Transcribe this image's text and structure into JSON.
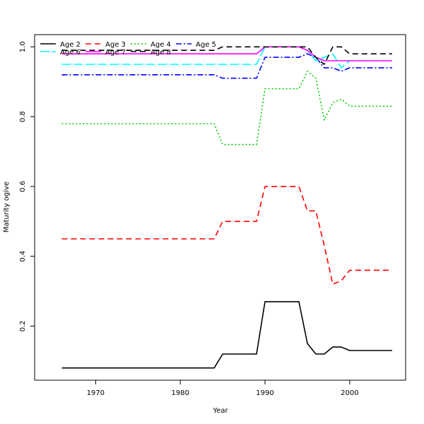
{
  "chart_data": {
    "type": "line",
    "title": "",
    "xlabel": "Year",
    "ylabel": "Maturity ogive",
    "xlim": [
      1962.8,
      2006.6
    ],
    "ylim": [
      0.045,
      1.035
    ],
    "x_ticks": [
      1970,
      1980,
      1990,
      2000
    ],
    "y_ticks": [
      0.2,
      0.4,
      0.6,
      0.8,
      1.0
    ],
    "x_tick_labels": [
      "1970",
      "1980",
      "1990",
      "2000"
    ],
    "y_tick_labels": [
      "0.2",
      "0.4",
      "0.6",
      "0.8",
      "1.0"
    ],
    "grid": false,
    "legend_position": "top-left",
    "x": [
      1966,
      1967,
      1968,
      1969,
      1970,
      1971,
      1972,
      1973,
      1974,
      1975,
      1976,
      1977,
      1978,
      1979,
      1980,
      1981,
      1982,
      1983,
      1984,
      1985,
      1986,
      1987,
      1988,
      1989,
      1990,
      1991,
      1992,
      1993,
      1994,
      1995,
      1996,
      1997,
      1998,
      1999,
      2000,
      2001,
      2002,
      2003,
      2004,
      2005
    ],
    "series": [
      {
        "name": "Age 2",
        "color": "#000000",
        "dash": "solid",
        "values": [
          0.08,
          0.08,
          0.08,
          0.08,
          0.08,
          0.08,
          0.08,
          0.08,
          0.08,
          0.08,
          0.08,
          0.08,
          0.08,
          0.08,
          0.08,
          0.08,
          0.08,
          0.08,
          0.08,
          0.12,
          0.12,
          0.12,
          0.12,
          0.12,
          0.27,
          0.27,
          0.27,
          0.27,
          0.27,
          0.15,
          0.12,
          0.12,
          0.14,
          0.14,
          0.13,
          0.13,
          0.13,
          0.13,
          0.13,
          0.13
        ]
      },
      {
        "name": "Age 3",
        "color": "#ff0000",
        "dash": "8,5",
        "values": [
          0.45,
          0.45,
          0.45,
          0.45,
          0.45,
          0.45,
          0.45,
          0.45,
          0.45,
          0.45,
          0.45,
          0.45,
          0.45,
          0.45,
          0.45,
          0.45,
          0.45,
          0.45,
          0.45,
          0.5,
          0.5,
          0.5,
          0.5,
          0.5,
          0.6,
          0.6,
          0.6,
          0.6,
          0.6,
          0.53,
          0.53,
          0.43,
          0.32,
          0.33,
          0.36,
          0.36,
          0.36,
          0.36,
          0.36,
          0.36
        ]
      },
      {
        "name": "Age 4",
        "color": "#00cd00",
        "dash": "2,3",
        "values": [
          0.78,
          0.78,
          0.78,
          0.78,
          0.78,
          0.78,
          0.78,
          0.78,
          0.78,
          0.78,
          0.78,
          0.78,
          0.78,
          0.78,
          0.78,
          0.78,
          0.78,
          0.78,
          0.78,
          0.72,
          0.72,
          0.72,
          0.72,
          0.72,
          0.88,
          0.88,
          0.88,
          0.88,
          0.88,
          0.93,
          0.91,
          0.79,
          0.84,
          0.85,
          0.83,
          0.83,
          0.83,
          0.83,
          0.83,
          0.83
        ]
      },
      {
        "name": "Age 5",
        "color": "#0000ff",
        "dash": "8,3,2,3",
        "values": [
          0.92,
          0.92,
          0.92,
          0.92,
          0.92,
          0.92,
          0.92,
          0.92,
          0.92,
          0.92,
          0.92,
          0.92,
          0.92,
          0.92,
          0.92,
          0.92,
          0.92,
          0.92,
          0.92,
          0.91,
          0.91,
          0.91,
          0.91,
          0.91,
          0.97,
          0.97,
          0.97,
          0.97,
          0.97,
          0.98,
          0.97,
          0.94,
          0.94,
          0.93,
          0.94,
          0.94,
          0.94,
          0.94,
          0.94,
          0.94
        ]
      },
      {
        "name": "Age 6",
        "color": "#00ffff",
        "dash": "13,4",
        "values": [
          0.95,
          0.95,
          0.95,
          0.95,
          0.95,
          0.95,
          0.95,
          0.95,
          0.95,
          0.95,
          0.95,
          0.95,
          0.95,
          0.95,
          0.95,
          0.95,
          0.95,
          0.95,
          0.95,
          0.95,
          0.95,
          0.95,
          0.95,
          0.95,
          1.0,
          1.0,
          1.0,
          1.0,
          1.0,
          0.99,
          0.96,
          0.97,
          0.98,
          0.94,
          0.96,
          0.96,
          0.96,
          0.96,
          0.96,
          0.96
        ]
      },
      {
        "name": "Age 7",
        "color": "#ff00ff",
        "dash": "solid",
        "values": [
          0.98,
          0.98,
          0.98,
          0.98,
          0.98,
          0.98,
          0.98,
          0.98,
          0.98,
          0.98,
          0.98,
          0.98,
          0.98,
          0.98,
          0.98,
          0.98,
          0.98,
          0.98,
          0.98,
          0.98,
          0.98,
          0.98,
          0.98,
          0.98,
          1.0,
          1.0,
          1.0,
          1.0,
          1.0,
          0.99,
          0.97,
          0.96,
          0.96,
          0.96,
          0.96,
          0.96,
          0.96,
          0.96,
          0.96,
          0.96
        ]
      },
      {
        "name": "Age 8",
        "color": "#000000",
        "dash": "8,5",
        "values": [
          0.99,
          0.99,
          0.99,
          0.99,
          0.99,
          0.99,
          0.99,
          0.99,
          0.99,
          0.99,
          0.99,
          0.99,
          0.99,
          0.99,
          0.99,
          0.99,
          0.99,
          0.99,
          0.99,
          1.0,
          1.0,
          1.0,
          1.0,
          1.0,
          1.0,
          1.0,
          1.0,
          1.0,
          1.0,
          1.0,
          0.97,
          0.95,
          1.0,
          1.0,
          0.98,
          0.98,
          0.98,
          0.98,
          0.98,
          0.98
        ]
      }
    ]
  }
}
